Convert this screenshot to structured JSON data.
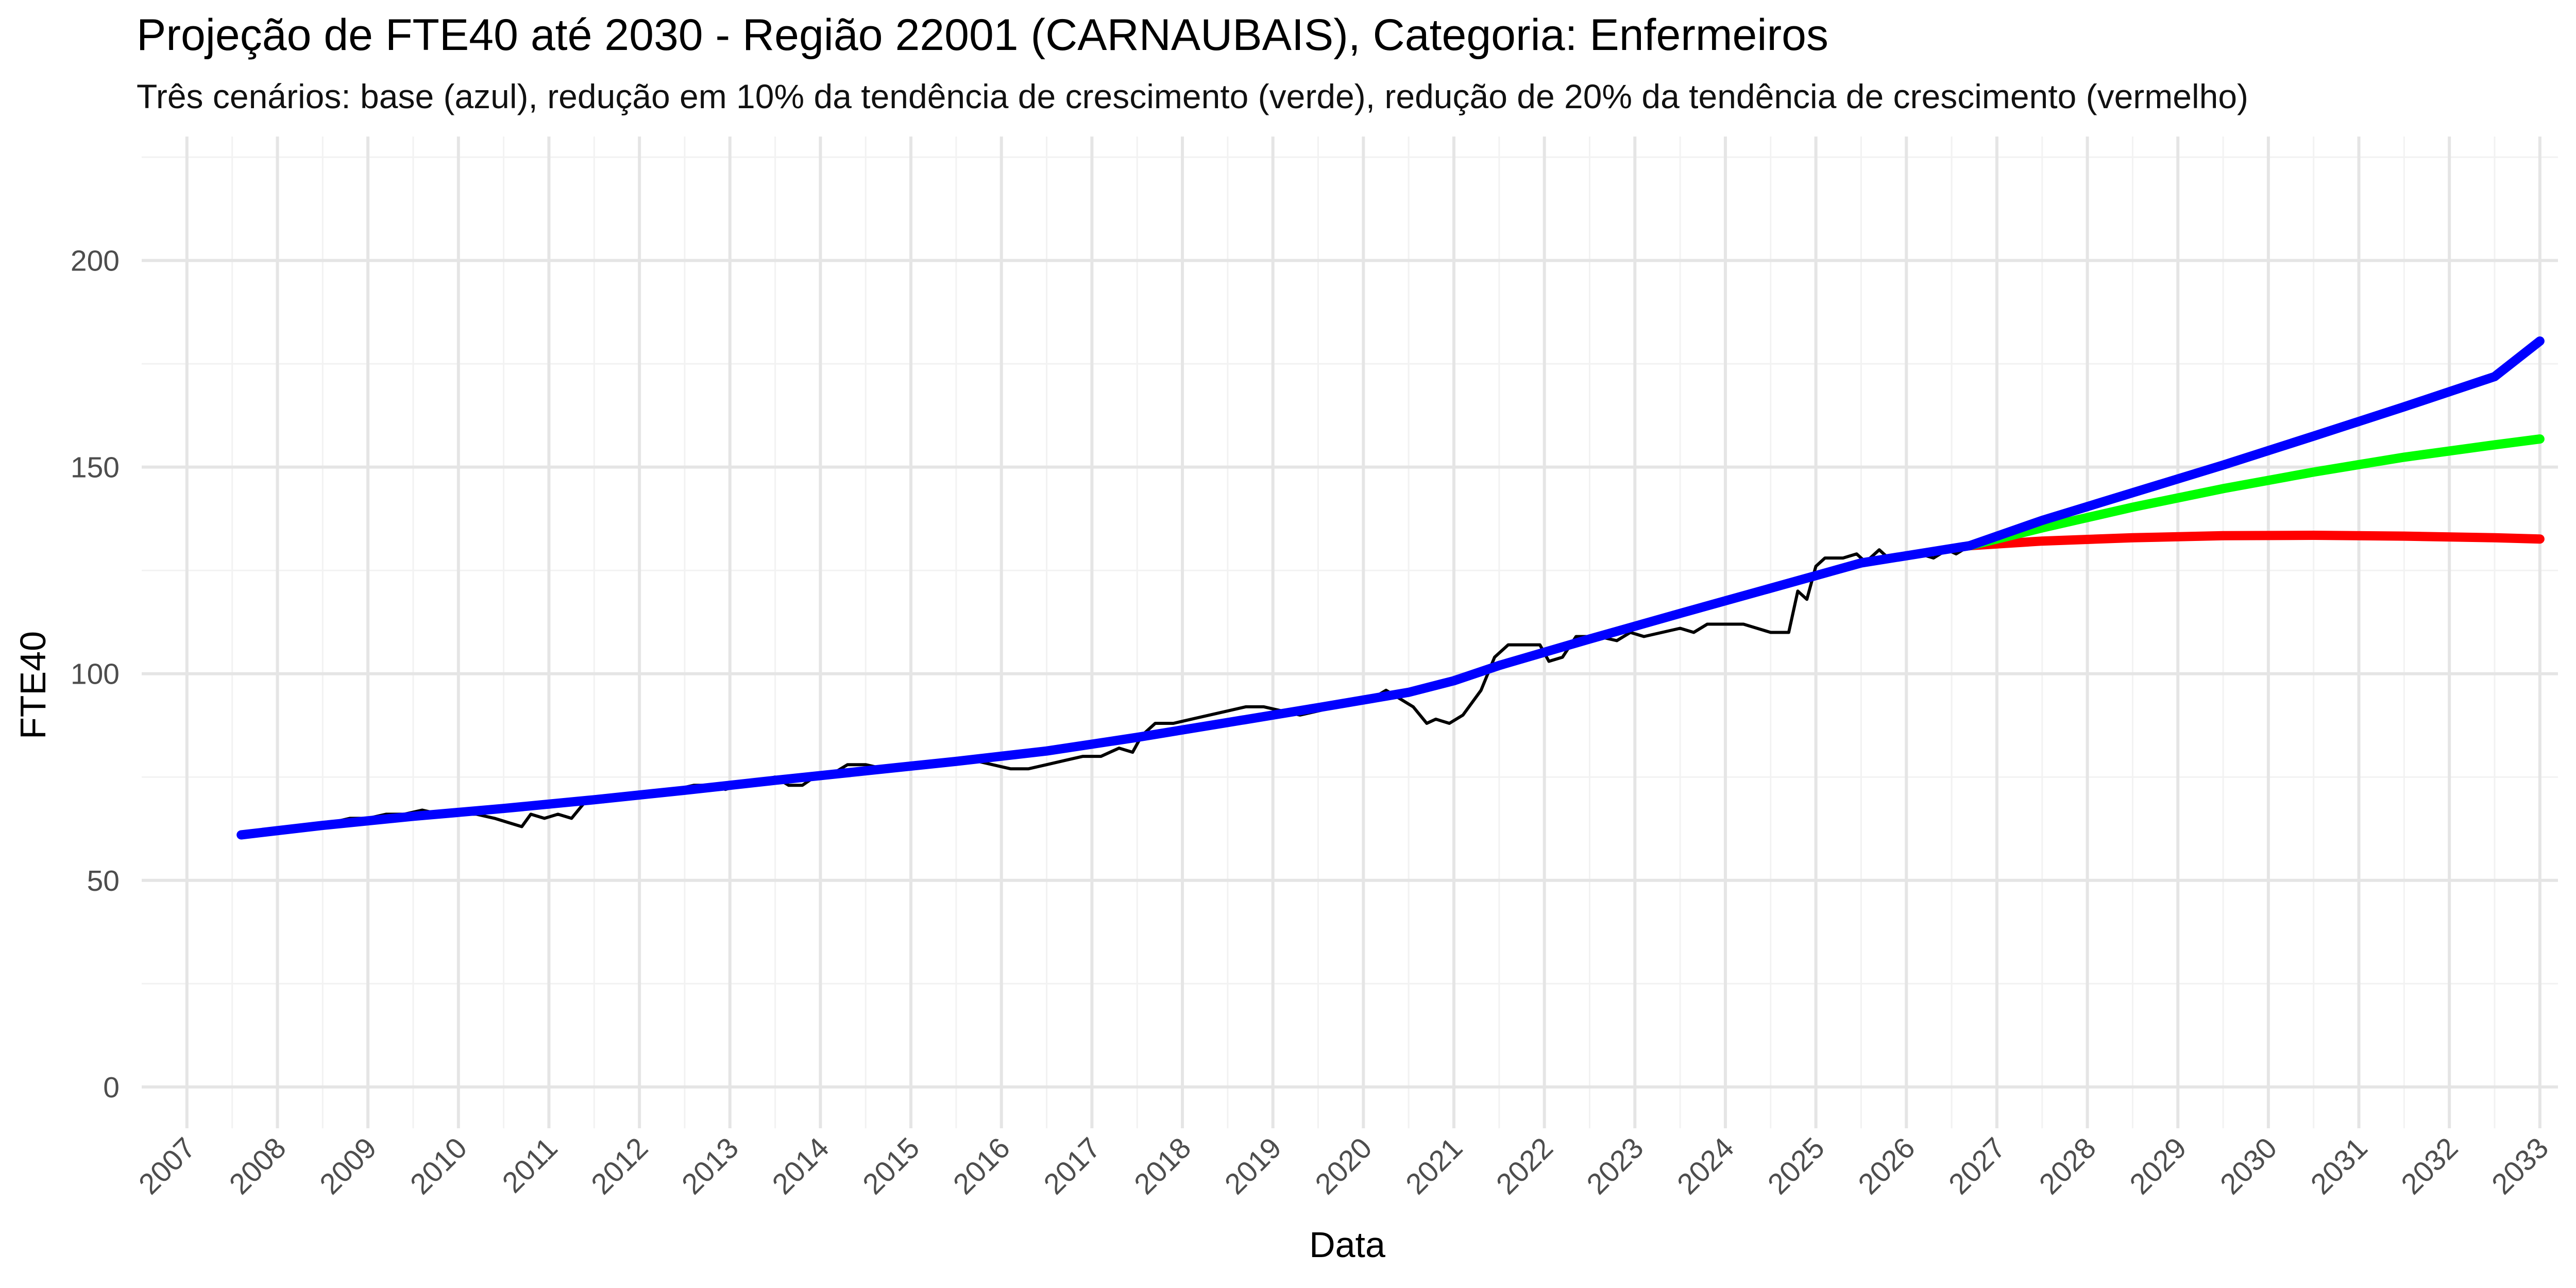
{
  "chart_data": {
    "type": "line",
    "title": "Projeção de FTE40 até 2030 - Região 22001 (CARNAUBAIS), Categoria: Enfermeiros",
    "subtitle": "Três cenários: base (azul), redução em 10% da tendência de crescimento (verde), redução de 20% da tendência de crescimento (vermelho)",
    "xlabel": "Data",
    "ylabel": "FTE40",
    "xlim": [
      2006.5,
      2033.2
    ],
    "ylim": [
      -10,
      230
    ],
    "x_ticks": [
      "2007",
      "2008",
      "2009",
      "2010",
      "2011",
      "2012",
      "2013",
      "2014",
      "2015",
      "2016",
      "2017",
      "2018",
      "2019",
      "2020",
      "2021",
      "2022",
      "2023",
      "2024",
      "2025",
      "2026",
      "2027",
      "2028",
      "2029",
      "2030",
      "2031",
      "2032",
      "2033"
    ],
    "y_ticks": [
      0,
      50,
      100,
      150,
      200
    ],
    "grid": true,
    "legend": "none",
    "series": [
      {
        "color": "#000000",
        "width": 6,
        "points": [
          [
            2007.6,
            61
          ],
          [
            2008.0,
            62
          ],
          [
            2008.3,
            63
          ],
          [
            2008.6,
            64
          ],
          [
            2008.8,
            65
          ],
          [
            2009.0,
            65
          ],
          [
            2009.2,
            66
          ],
          [
            2009.4,
            66
          ],
          [
            2009.6,
            67
          ],
          [
            2009.8,
            66
          ],
          [
            2010.0,
            66
          ],
          [
            2010.2,
            66
          ],
          [
            2010.4,
            65
          ],
          [
            2010.55,
            64
          ],
          [
            2010.7,
            63
          ],
          [
            2010.8,
            66
          ],
          [
            2010.95,
            65
          ],
          [
            2011.1,
            66
          ],
          [
            2011.25,
            65
          ],
          [
            2011.4,
            69
          ],
          [
            2011.6,
            69
          ],
          [
            2011.8,
            70
          ],
          [
            2012.0,
            70
          ],
          [
            2012.2,
            71
          ],
          [
            2012.4,
            72
          ],
          [
            2012.6,
            73
          ],
          [
            2012.8,
            73
          ],
          [
            2012.95,
            72
          ],
          [
            2013.1,
            73
          ],
          [
            2013.3,
            74
          ],
          [
            2013.5,
            75
          ],
          [
            2013.65,
            73
          ],
          [
            2013.8,
            73
          ],
          [
            2014.0,
            76
          ],
          [
            2014.15,
            76
          ],
          [
            2014.3,
            78
          ],
          [
            2014.5,
            78
          ],
          [
            2014.7,
            77
          ],
          [
            2014.9,
            77
          ],
          [
            2015.1,
            78
          ],
          [
            2015.3,
            78
          ],
          [
            2015.5,
            79
          ],
          [
            2015.7,
            79
          ],
          [
            2015.9,
            78
          ],
          [
            2016.1,
            77
          ],
          [
            2016.3,
            77
          ],
          [
            2016.5,
            78
          ],
          [
            2016.7,
            79
          ],
          [
            2016.9,
            80
          ],
          [
            2017.1,
            80
          ],
          [
            2017.3,
            82
          ],
          [
            2017.45,
            81
          ],
          [
            2017.55,
            85
          ],
          [
            2017.7,
            88
          ],
          [
            2017.9,
            88
          ],
          [
            2018.1,
            89
          ],
          [
            2018.3,
            90
          ],
          [
            2018.5,
            91
          ],
          [
            2018.7,
            92
          ],
          [
            2018.9,
            92
          ],
          [
            2019.1,
            91
          ],
          [
            2019.3,
            90
          ],
          [
            2019.5,
            91
          ],
          [
            2019.7,
            92
          ],
          [
            2019.9,
            93
          ],
          [
            2020.1,
            94
          ],
          [
            2020.25,
            96
          ],
          [
            2020.4,
            94
          ],
          [
            2020.55,
            92
          ],
          [
            2020.7,
            88
          ],
          [
            2020.8,
            89
          ],
          [
            2020.95,
            88
          ],
          [
            2021.1,
            90
          ],
          [
            2021.3,
            96
          ],
          [
            2021.45,
            104
          ],
          [
            2021.6,
            107
          ],
          [
            2021.8,
            107
          ],
          [
            2021.95,
            107
          ],
          [
            2022.05,
            103
          ],
          [
            2022.2,
            104
          ],
          [
            2022.35,
            109
          ],
          [
            2022.6,
            109
          ],
          [
            2022.8,
            108
          ],
          [
            2022.95,
            110
          ],
          [
            2023.1,
            109
          ],
          [
            2023.3,
            110
          ],
          [
            2023.5,
            111
          ],
          [
            2023.65,
            110
          ],
          [
            2023.8,
            112
          ],
          [
            2024.0,
            112
          ],
          [
            2024.2,
            112
          ],
          [
            2024.35,
            111
          ],
          [
            2024.5,
            110
          ],
          [
            2024.7,
            110
          ],
          [
            2024.8,
            120
          ],
          [
            2024.9,
            118
          ],
          [
            2025.0,
            126
          ],
          [
            2025.1,
            128
          ],
          [
            2025.3,
            128
          ],
          [
            2025.45,
            129
          ],
          [
            2025.55,
            127
          ],
          [
            2025.7,
            130
          ],
          [
            2025.8,
            128
          ],
          [
            2026.0,
            128
          ],
          [
            2026.15,
            129
          ],
          [
            2026.3,
            128
          ],
          [
            2026.45,
            130
          ],
          [
            2026.55,
            129
          ],
          [
            2026.7,
            131
          ]
        ]
      },
      {
        "color": "#ff0000",
        "width": 18,
        "points": [
          [
            2026.7,
            131
          ],
          [
            2027.5,
            132.1
          ],
          [
            2028.5,
            132.9
          ],
          [
            2029.5,
            133.4
          ],
          [
            2030.5,
            133.5
          ],
          [
            2031.5,
            133.3
          ],
          [
            2032.5,
            132.9
          ],
          [
            2033.0,
            132.6
          ]
        ]
      },
      {
        "color": "#00ff00",
        "width": 18,
        "points": [
          [
            2026.7,
            131
          ],
          [
            2027.5,
            135.3
          ],
          [
            2028.5,
            140.3
          ],
          [
            2029.5,
            144.8
          ],
          [
            2030.5,
            148.8
          ],
          [
            2031.5,
            152.4
          ],
          [
            2032.5,
            155.4
          ],
          [
            2033.0,
            156.8
          ]
        ]
      },
      {
        "color": "#0000ff",
        "width": 18,
        "points": [
          [
            2007.6,
            61
          ],
          [
            2008.5,
            63.3
          ],
          [
            2009.5,
            65.5
          ],
          [
            2010.5,
            67.4
          ],
          [
            2011.5,
            69.5
          ],
          [
            2012.5,
            71.8
          ],
          [
            2013.5,
            74.2
          ],
          [
            2014.5,
            76.5
          ],
          [
            2015.5,
            78.8
          ],
          [
            2016.5,
            81.3
          ],
          [
            2017.5,
            84.6
          ],
          [
            2018.5,
            88.2
          ],
          [
            2019.5,
            91.8
          ],
          [
            2020.5,
            95.5
          ],
          [
            2021.0,
            98.3
          ],
          [
            2021.5,
            102.0
          ],
          [
            2022.5,
            108.4
          ],
          [
            2023.5,
            114.6
          ],
          [
            2024.5,
            120.7
          ],
          [
            2025.5,
            126.8
          ],
          [
            2026.7,
            131
          ],
          [
            2027.5,
            137.1
          ],
          [
            2028.5,
            143.8
          ],
          [
            2029.5,
            150.5
          ],
          [
            2030.5,
            157.5
          ],
          [
            2031.5,
            164.6
          ],
          [
            2032.5,
            171.9
          ],
          [
            2033.0,
            180.5
          ]
        ]
      }
    ]
  }
}
